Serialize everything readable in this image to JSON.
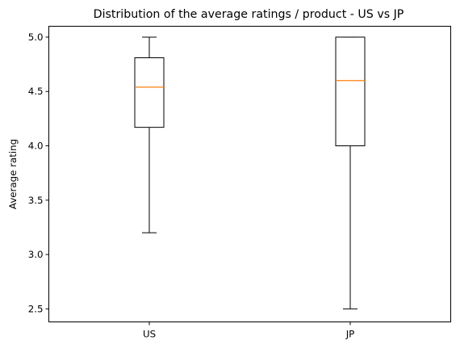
{
  "chart_data": {
    "type": "box",
    "title": "Distribution of the average ratings / product - US vs JP",
    "xlabel": "",
    "ylabel": "Average rating",
    "ylim": [
      2.38,
      5.1
    ],
    "yticks": [
      "2.5",
      "3.0",
      "3.5",
      "4.0",
      "4.5",
      "5.0"
    ],
    "grid": false,
    "legend": "none",
    "categories": [
      "US",
      "JP"
    ],
    "boxes": [
      {
        "category": "US",
        "whisker_low": 3.2,
        "q1": 4.17,
        "median": 4.54,
        "q3": 4.81,
        "whisker_high": 5.0
      },
      {
        "category": "JP",
        "whisker_low": 2.5,
        "q1": 4.0,
        "median": 4.6,
        "q3": 5.0,
        "whisker_high": 5.0
      }
    ],
    "colors": {
      "box": "#000000",
      "median": "#ff7f0e"
    }
  }
}
